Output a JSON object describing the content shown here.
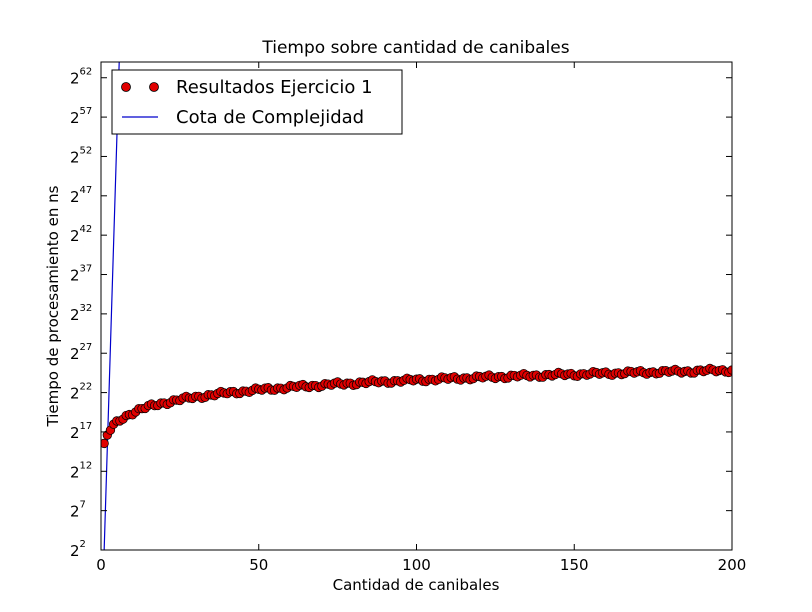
{
  "chart_data": {
    "type": "scatter",
    "title": "Tiempo sobre cantidad de canibales",
    "xlabel": "Cantidad de canibales",
    "ylabel": "Tiempo de procesamiento en ns",
    "xlim": [
      0,
      200
    ],
    "ylim_log2": [
      2,
      64
    ],
    "y_scale": "log2",
    "x_ticks": [
      "0",
      "50",
      "100",
      "150",
      "200"
    ],
    "y_ticks": [
      {
        "base": "2",
        "exp": "2"
      },
      {
        "base": "2",
        "exp": "7"
      },
      {
        "base": "2",
        "exp": "12"
      },
      {
        "base": "2",
        "exp": "17"
      },
      {
        "base": "2",
        "exp": "22"
      },
      {
        "base": "2",
        "exp": "27"
      },
      {
        "base": "2",
        "exp": "32"
      },
      {
        "base": "2",
        "exp": "37"
      },
      {
        "base": "2",
        "exp": "42"
      },
      {
        "base": "2",
        "exp": "47"
      },
      {
        "base": "2",
        "exp": "52"
      },
      {
        "base": "2",
        "exp": "57"
      },
      {
        "base": "2",
        "exp": "62"
      }
    ],
    "legend_position": "top-left",
    "grid": false,
    "series": [
      {
        "name": "Resultados Ejercicio 1",
        "marker": "circle",
        "color": "#e00000",
        "x_range": [
          1,
          200
        ],
        "x_step": 1,
        "y_log2_model": {
          "a": 15.3,
          "b": 1.8,
          "form": "a + b*ln(x)"
        }
      },
      {
        "name": "Cota de Complejidad",
        "style": "line",
        "color": "#0000cc",
        "x": [
          1,
          2,
          3,
          4,
          5,
          6
        ],
        "y_log2": [
          2,
          15,
          28,
          41,
          54,
          67
        ]
      }
    ]
  }
}
